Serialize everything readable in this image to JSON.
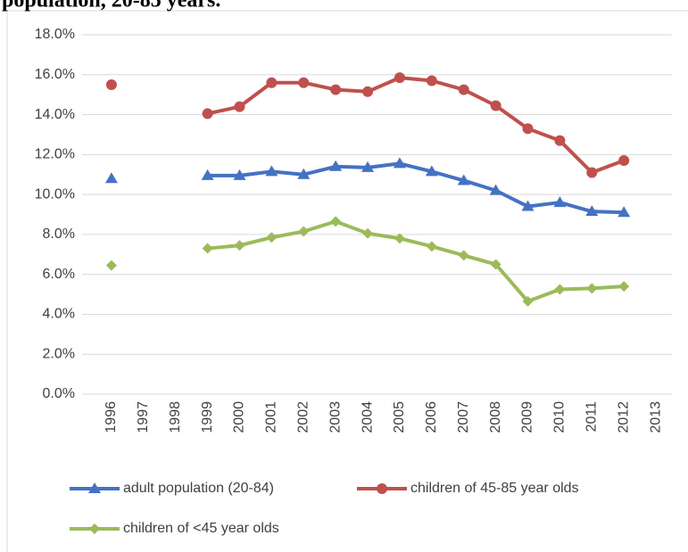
{
  "chart_data": {
    "type": "line",
    "title": "population, 20-85 years.",
    "categories": [
      "1996",
      "1997",
      "1998",
      "1999",
      "2000",
      "2001",
      "2002",
      "2003",
      "2004",
      "2005",
      "2006",
      "2007",
      "2008",
      "2009",
      "2010",
      "2011",
      "2012",
      "2013"
    ],
    "series": [
      {
        "name": "adult population (20-84)",
        "color": "#4472c4",
        "marker": "triangle",
        "values": [
          10.8,
          null,
          null,
          10.95,
          10.95,
          11.15,
          11.0,
          11.4,
          11.35,
          11.55,
          11.15,
          10.7,
          10.2,
          9.4,
          9.6,
          9.15,
          9.1,
          null
        ]
      },
      {
        "name": "children of 45-85 year olds",
        "color": "#c0504d",
        "marker": "circle",
        "values": [
          15.5,
          null,
          null,
          14.05,
          14.4,
          15.6,
          15.6,
          15.25,
          15.15,
          15.85,
          15.7,
          15.25,
          14.45,
          13.3,
          12.7,
          11.1,
          11.7,
          null
        ]
      },
      {
        "name": "children of <45 year olds",
        "color": "#9bbb59",
        "marker": "diamond",
        "values": [
          6.45,
          null,
          null,
          7.3,
          7.45,
          7.85,
          8.15,
          8.65,
          8.05,
          7.8,
          7.4,
          6.95,
          6.5,
          4.65,
          5.25,
          5.3,
          5.4,
          null
        ]
      }
    ],
    "ylim": [
      0,
      18
    ],
    "yticks": [
      {
        "value": 0,
        "label": "0.0%"
      },
      {
        "value": 2,
        "label": "2.0%"
      },
      {
        "value": 4,
        "label": "4.0%"
      },
      {
        "value": 6,
        "label": "6.0%"
      },
      {
        "value": 8,
        "label": "8.0%"
      },
      {
        "value": 10,
        "label": "10.0%"
      },
      {
        "value": 12,
        "label": "12.0%"
      },
      {
        "value": 14,
        "label": "14.0%"
      },
      {
        "value": 16,
        "label": "16.0%"
      },
      {
        "value": 18,
        "label": "18.0%"
      }
    ],
    "grid": true,
    "legend": "bottom"
  }
}
